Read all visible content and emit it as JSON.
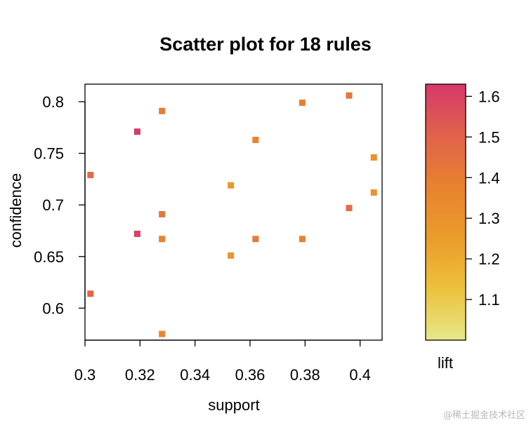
{
  "chart_data": {
    "type": "scatter",
    "title": "Scatter plot for 18 rules",
    "xlabel": "support",
    "ylabel": "confidence",
    "xlim": [
      0.3,
      0.408
    ],
    "ylim": [
      0.569,
      0.817
    ],
    "x_ticks": [
      0.3,
      0.32,
      0.34,
      0.36,
      0.38,
      0.4
    ],
    "x_tick_labels": [
      "0.3",
      "0.32",
      "0.34",
      "0.36",
      "0.38",
      "0.4"
    ],
    "y_ticks": [
      0.6,
      0.65,
      0.7,
      0.75,
      0.8
    ],
    "y_tick_labels": [
      "0.6",
      "0.65",
      "0.7",
      "0.75",
      "0.8"
    ],
    "grid": false,
    "points": [
      {
        "x": 0.302,
        "y": 0.729,
        "lift": 1.47
      },
      {
        "x": 0.302,
        "y": 0.614,
        "lift": 1.49
      },
      {
        "x": 0.319,
        "y": 0.771,
        "lift": 1.63
      },
      {
        "x": 0.319,
        "y": 0.672,
        "lift": 1.6
      },
      {
        "x": 0.328,
        "y": 0.791,
        "lift": 1.4
      },
      {
        "x": 0.328,
        "y": 0.691,
        "lift": 1.42
      },
      {
        "x": 0.328,
        "y": 0.667,
        "lift": 1.38
      },
      {
        "x": 0.328,
        "y": 0.575,
        "lift": 1.36
      },
      {
        "x": 0.353,
        "y": 0.719,
        "lift": 1.27
      },
      {
        "x": 0.353,
        "y": 0.651,
        "lift": 1.28
      },
      {
        "x": 0.362,
        "y": 0.763,
        "lift": 1.37
      },
      {
        "x": 0.362,
        "y": 0.667,
        "lift": 1.4
      },
      {
        "x": 0.379,
        "y": 0.799,
        "lift": 1.39
      },
      {
        "x": 0.379,
        "y": 0.667,
        "lift": 1.38
      },
      {
        "x": 0.396,
        "y": 0.806,
        "lift": 1.43
      },
      {
        "x": 0.396,
        "y": 0.697,
        "lift": 1.46
      },
      {
        "x": 0.405,
        "y": 0.746,
        "lift": 1.3
      },
      {
        "x": 0.405,
        "y": 0.712,
        "lift": 1.29
      }
    ],
    "colorbar": {
      "label": "lift",
      "range": [
        1.0,
        1.63
      ],
      "ticks": [
        1.1,
        1.2,
        1.3,
        1.4,
        1.5,
        1.6
      ],
      "tick_labels": [
        "1.1",
        "1.2",
        "1.3",
        "1.4",
        "1.5",
        "1.6"
      ],
      "colors": [
        "#e6e88a",
        "#ecc13b",
        "#eb9b2b",
        "#e8822f",
        "#e0624a",
        "#d6396a"
      ],
      "placement": "right"
    }
  },
  "watermark": "@稀土掘金技术社区"
}
